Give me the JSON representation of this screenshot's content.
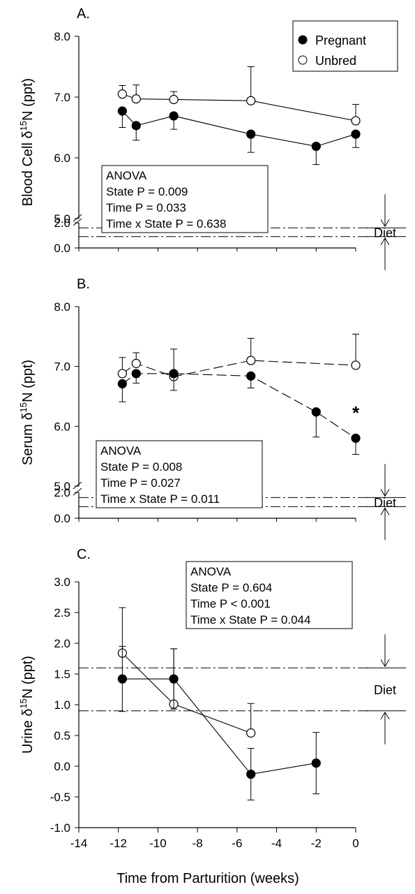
{
  "legend": {
    "entries": [
      {
        "label": "Pregnant",
        "marker": "filled-circle"
      },
      {
        "label": "Unbred",
        "marker": "open-circle"
      }
    ]
  },
  "x_axis": {
    "label": "Time from Parturition (weeks)",
    "ticks": [
      "-14",
      "-12",
      "-10",
      "-8",
      "-6",
      "-4",
      "-2",
      "0"
    ]
  },
  "colors": {
    "axis": "#000000",
    "pregnant_fill": "#000000",
    "unbred_fill": "#ffffff"
  },
  "chart_data": [
    {
      "type": "line",
      "panel_label": "A.",
      "ylabel": "Blood Cell δ15N (ppt)",
      "ylabel_parts": {
        "pre": "Blood Cell δ",
        "sup": "15",
        "post": "N (ppt)"
      },
      "y_axis_break": true,
      "y_ticks_upper": [
        "5.0",
        "6.0",
        "7.0",
        "8.0"
      ],
      "y_ticks_lower": [
        "0.0",
        "2.0"
      ],
      "ylim_upper": [
        5.0,
        8.0
      ],
      "ylim_lower": [
        0.0,
        2.0
      ],
      "xlim": [
        -14,
        0
      ],
      "series": [
        {
          "name": "Pregnant",
          "x": [
            -11.8,
            -11.1,
            -9.2,
            -5.3,
            -2.0,
            0.0
          ],
          "y": [
            6.77,
            6.53,
            6.69,
            6.39,
            6.19,
            6.39
          ],
          "err": [
            0.27,
            0.24,
            0.22,
            0.3,
            0.3,
            0.22
          ],
          "err_dir": "down"
        },
        {
          "name": "Unbred",
          "x": [
            -11.8,
            -11.1,
            -9.2,
            -5.3,
            0.0
          ],
          "y": [
            7.05,
            6.97,
            6.96,
            6.94,
            6.61
          ],
          "err": [
            0.14,
            0.23,
            0.13,
            0.56,
            0.27
          ],
          "err_dir": "up"
        }
      ],
      "diet_lines": [
        1.6,
        0.9
      ],
      "diet_label": "Diet",
      "anova": {
        "title": "ANOVA",
        "lines": [
          "State P = 0.009",
          "Time P = 0.033",
          "Time x State P = 0.638"
        ]
      }
    },
    {
      "type": "line",
      "panel_label": "B.",
      "ylabel": "Serum δ15N (ppt)",
      "ylabel_parts": {
        "pre": "Serum δ",
        "sup": "15",
        "post": "N (ppt)"
      },
      "y_axis_break": true,
      "y_ticks_upper": [
        "5.0",
        "6.0",
        "7.0",
        "8.0"
      ],
      "y_ticks_lower": [
        "0.0",
        "2.0"
      ],
      "ylim_upper": [
        5.0,
        8.0
      ],
      "ylim_lower": [
        0.0,
        2.0
      ],
      "xlim": [
        -14,
        0
      ],
      "series": [
        {
          "name": "Pregnant",
          "x": [
            -11.8,
            -11.1,
            -9.2,
            -5.3,
            -2.0,
            0.0
          ],
          "y": [
            6.71,
            6.88,
            6.88,
            6.84,
            6.24,
            5.8
          ],
          "err": [
            0.3,
            0.16,
            0.28,
            0.2,
            0.42,
            0.27
          ],
          "err_dir": "down"
        },
        {
          "name": "Unbred",
          "x": [
            -11.8,
            -11.1,
            -9.2,
            -5.3,
            0.0
          ],
          "y": [
            6.88,
            7.05,
            6.83,
            7.1,
            7.02
          ],
          "err": [
            0.27,
            0.18,
            0.46,
            0.37,
            0.52
          ],
          "err_dir": "up"
        }
      ],
      "diet_lines": [
        1.6,
        0.9
      ],
      "diet_label": "Diet",
      "annotation": "*",
      "anova": {
        "title": "ANOVA",
        "lines": [
          "State P = 0.008",
          "Time P = 0.027",
          "Time x State P = 0.011"
        ]
      }
    },
    {
      "type": "line",
      "panel_label": "C.",
      "ylabel": "Urine δ15N (ppt)",
      "ylabel_parts": {
        "pre": "Urine δ",
        "sup": "15",
        "post": "N (ppt)"
      },
      "y_axis_break": false,
      "y_ticks": [
        "-1.0",
        "-0.5",
        "0.0",
        "0.5",
        "1.0",
        "1.5",
        "2.0",
        "2.5",
        "3.0"
      ],
      "ylim": [
        -1.0,
        3.0
      ],
      "xlim": [
        -14,
        0
      ],
      "series": [
        {
          "name": "Pregnant",
          "x": [
            -11.8,
            -9.2,
            -5.3,
            -2.0
          ],
          "y": [
            1.42,
            1.42,
            -0.13,
            0.05
          ],
          "err": [
            0.53,
            0.49,
            0.42,
            0.5
          ],
          "err_dir": "both"
        },
        {
          "name": "Unbred",
          "x": [
            -11.8,
            -9.2,
            -5.3
          ],
          "y": [
            1.84,
            1.01,
            0.54
          ],
          "err": [
            0.74,
            0.9,
            0.48
          ],
          "err_dir": "up"
        }
      ],
      "diet_lines": [
        1.6,
        0.9
      ],
      "diet_label": "Diet",
      "anova": {
        "title": "ANOVA",
        "lines": [
          "State P = 0.604",
          "Time P < 0.001",
          "Time  x State P = 0.044"
        ]
      }
    }
  ]
}
